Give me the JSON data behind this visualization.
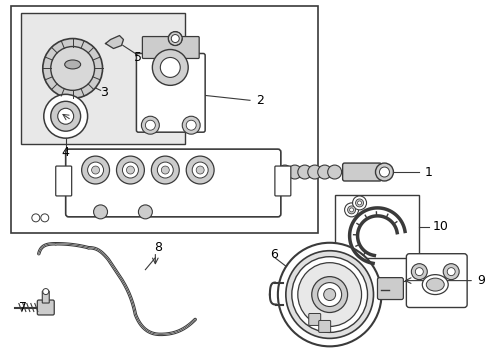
{
  "figsize": [
    4.89,
    3.6
  ],
  "dpi": 100,
  "bg": "#ffffff",
  "lc": "#3a3a3a",
  "fill_light": "#e8e8e8",
  "fill_white": "#ffffff",
  "fill_med": "#cccccc",
  "fill_dark": "#aaaaaa"
}
